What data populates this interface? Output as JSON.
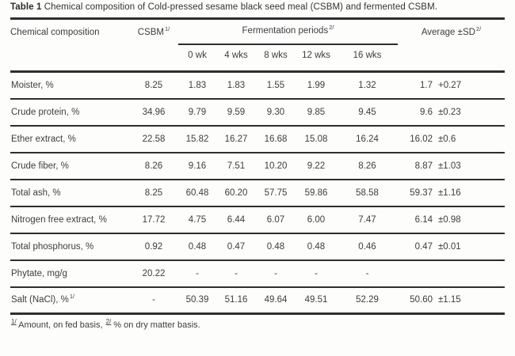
{
  "title": {
    "bold": "Table 1",
    "rest": "Chemical composition of Cold-pressed sesame black seed meal (CSBM) and fermented CSBM."
  },
  "table": {
    "headers": {
      "label": "Chemical composition",
      "csbm": "CSBM",
      "csbm_sup": "1/",
      "fermentation": "Fermentation periods",
      "fermentation_sup": "2/",
      "average": "Average ±SD",
      "average_sup": "2/"
    },
    "week_headers": [
      "0 wk",
      "4 wks",
      "8 wks",
      "12 wks",
      "16 wks"
    ],
    "rows": [
      {
        "label": "Moister, %",
        "label_sup": "",
        "csbm": "8.25",
        "w0": "1.83",
        "w4": "1.83",
        "w8": "1.55",
        "w12": "1.99",
        "w16": "1.32",
        "avg": "1.7",
        "sd": "+0.27"
      },
      {
        "label": "Crude protein, %",
        "label_sup": "",
        "csbm": "34.96",
        "w0": "9.79",
        "w4": "9.59",
        "w8": "9.30",
        "w12": "9.85",
        "w16": "9.45",
        "avg": "9.6",
        "sd": "±0.23"
      },
      {
        "label": "Ether extract, %",
        "label_sup": "",
        "csbm": "22.58",
        "w0": "15.82",
        "w4": "16.27",
        "w8": "16.68",
        "w12": "15.08",
        "w16": "16.24",
        "avg": "16.02",
        "sd": "±0.6"
      },
      {
        "label": "Crude fiber, %",
        "label_sup": "",
        "csbm": "8.26",
        "w0": "9.16",
        "w4": "7.51",
        "w8": "10.20",
        "w12": "9.22",
        "w16": "8.26",
        "avg": "8.87",
        "sd": "±1.03"
      },
      {
        "label": "Total ash, %",
        "label_sup": "",
        "csbm": "8.25",
        "w0": "60.48",
        "w4": "60.20",
        "w8": "57.75",
        "w12": "59.86",
        "w16": "58.58",
        "avg": "59.37",
        "sd": "±1.16"
      },
      {
        "label": "Nitrogen free extract, %",
        "label_sup": "",
        "csbm": "17.72",
        "w0": "4.75",
        "w4": "6.44",
        "w8": "6.07",
        "w12": "6.00",
        "w16": "7.47",
        "avg": "6.14",
        "sd": "±0.98"
      },
      {
        "label": "Total phosphorus, %",
        "label_sup": "",
        "csbm": "0.92",
        "w0": "0.48",
        "w4": "0.47",
        "w8": "0.48",
        "w12": "0.48",
        "w16": "0.46",
        "avg": "0.47",
        "sd": "±0.01"
      },
      {
        "label": "Phytate, mg/g",
        "label_sup": "",
        "csbm": "20.22",
        "w0": "-",
        "w4": "-",
        "w8": "-",
        "w12": "-",
        "w16": "-",
        "avg": "",
        "sd": ""
      },
      {
        "label": "Salt (NaCl), %",
        "label_sup": "1/",
        "csbm": "-",
        "w0": "50.39",
        "w4": "51.16",
        "w8": "49.64",
        "w12": "49.51",
        "w16": "52.29",
        "avg": "50.60",
        "sd": "±1.15"
      }
    ],
    "footnote": {
      "sup1": "1/",
      "text1": " Amount, on fed basis, ",
      "sup2": "2/",
      "text2": " % on dry matter basis."
    }
  }
}
